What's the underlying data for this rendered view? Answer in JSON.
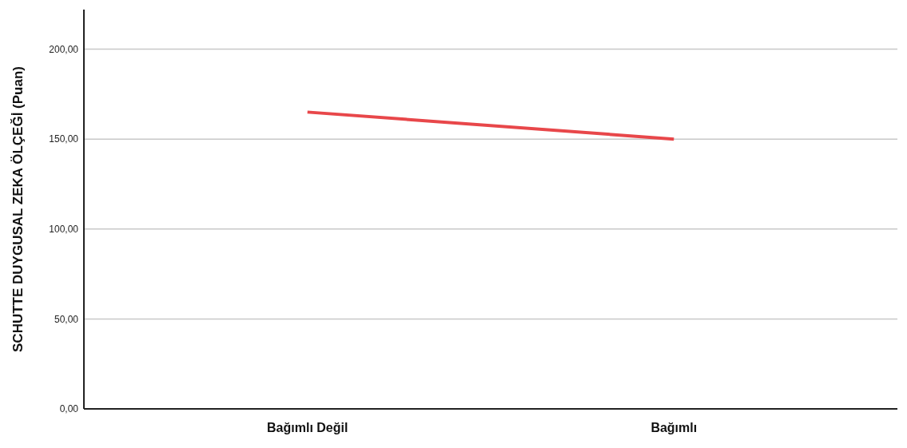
{
  "chart_data": {
    "type": "line",
    "ylabel": "SCHUTTE DUYGUSAL ZEKA ÖLÇEĞİ (Puan)",
    "categories": [
      "Bağımlı Değil",
      "Bağımlı"
    ],
    "series": [
      {
        "color": "#e8474a",
        "values": [
          165,
          150
        ]
      }
    ],
    "ylim": [
      0,
      222
    ],
    "yticks": [
      {
        "value": 0,
        "label": "0,00"
      },
      {
        "value": 50,
        "label": "50,00"
      },
      {
        "value": 100,
        "label": "100,00"
      },
      {
        "value": 150,
        "label": "150,00"
      },
      {
        "value": 200,
        "label": "200,00"
      }
    ],
    "grid": "y",
    "marker": "none",
    "line_style": "solid"
  }
}
